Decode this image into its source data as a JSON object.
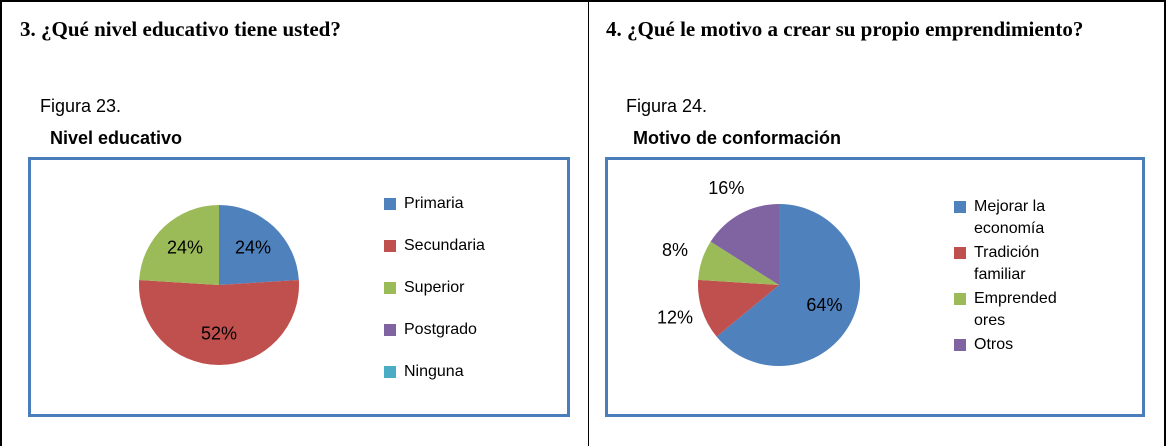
{
  "questions": [
    "3. ¿Qué nivel educativo tiene usted?",
    "4. ¿Qué le motivo a crear su propio emprendimiento?"
  ],
  "figures": [
    "Figura 23.",
    "Figura 24."
  ],
  "chart_data": [
    {
      "type": "pie",
      "title": "Nivel educativo",
      "categories": [
        "Primaria",
        "Secundaria",
        "Superior",
        "Postgrado",
        "Ninguna"
      ],
      "values": [
        24,
        52,
        24,
        0,
        0
      ],
      "value_labels": [
        "24%",
        "52%",
        "24%",
        null,
        null
      ],
      "colors": [
        "#4f81bd",
        "#c0504d",
        "#9bbb59",
        "#8064a2",
        "#4bacc6"
      ],
      "legend": "right"
    },
    {
      "type": "pie",
      "title": "Motivo de conformación",
      "categories": [
        "Mejorar la economía",
        "Tradición familiar",
        "Emprendedores",
        "Otros"
      ],
      "values": [
        64,
        12,
        8,
        16
      ],
      "value_labels": [
        "64%",
        "12%",
        "8%",
        "16%"
      ],
      "colors": [
        "#4f81bd",
        "#c0504d",
        "#9bbb59",
        "#8064a2"
      ],
      "legend": "right"
    }
  ]
}
